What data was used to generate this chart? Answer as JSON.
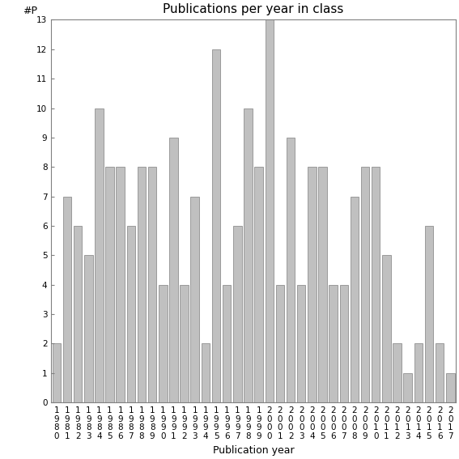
{
  "title": "Publications per year in class",
  "xlabel": "Publication year",
  "ylabel": "#P",
  "years": [
    "1980",
    "1981",
    "1982",
    "1983",
    "1984",
    "1985",
    "1986",
    "1987",
    "1988",
    "1989",
    "1990",
    "1991",
    "1992",
    "1993",
    "1994",
    "1995",
    "1996",
    "1997",
    "1998",
    "1999",
    "2000",
    "2001",
    "2002",
    "2003",
    "2004",
    "2005",
    "2006",
    "2007",
    "2008",
    "2009",
    "2010",
    "2011",
    "2012",
    "2013",
    "2014",
    "2015",
    "2016",
    "2017"
  ],
  "values": [
    2,
    7,
    6,
    5,
    10,
    8,
    8,
    6,
    8,
    8,
    4,
    9,
    4,
    7,
    2,
    12,
    4,
    6,
    10,
    8,
    13,
    4,
    9,
    4,
    8,
    8,
    4,
    4,
    7,
    8,
    8,
    5,
    2,
    1,
    2,
    6,
    2,
    1
  ],
  "bar_color": "#c0c0c0",
  "bar_edgecolor": "#808080",
  "ylim": [
    0,
    13
  ],
  "yticks": [
    0,
    1,
    2,
    3,
    4,
    5,
    6,
    7,
    8,
    9,
    10,
    11,
    12,
    13
  ],
  "bg_color": "#ffffff",
  "title_fontsize": 11,
  "axis_label_fontsize": 9,
  "tick_fontsize": 7.5
}
